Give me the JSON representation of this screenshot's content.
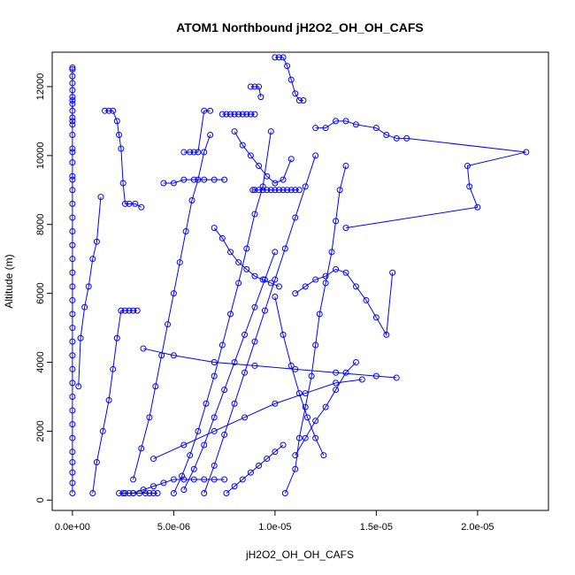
{
  "chart_data": {
    "type": "scatter",
    "title": "ATOM1 Northbound jH2O2_OH_OH_CAFS",
    "xlabel": "jH2O2_OH_OH_CAFS",
    "ylabel": "Altitude (m)",
    "xlim": [
      -1e-06,
      2.35e-05
    ],
    "ylim": [
      -300,
      13000
    ],
    "x_ticks": [
      0,
      5e-06,
      1e-05,
      1.5e-05,
      2e-05
    ],
    "x_tick_labels": [
      "0.0e+00",
      "5.0e-06",
      "1.0e-05",
      "1.5e-05",
      "2.0e-05"
    ],
    "y_ticks": [
      0,
      2000,
      4000,
      6000,
      8000,
      10000,
      12000
    ],
    "y_tick_labels": [
      "0",
      "2000",
      "4000",
      "6000",
      "8000",
      "10000",
      "12000"
    ],
    "grid": false,
    "legend": "none",
    "point_style": "open-circle",
    "series_style": "lines-and-points",
    "color": "#0000ff",
    "series": [
      {
        "x": [
          0,
          0,
          0,
          0,
          0,
          0,
          0,
          0,
          0,
          0,
          0,
          0,
          0,
          0,
          0,
          0,
          0,
          0,
          0,
          0,
          0,
          0,
          0,
          0,
          0,
          0,
          0,
          0,
          0,
          0,
          0,
          0,
          0,
          0,
          0,
          0,
          0,
          0,
          0,
          0,
          0,
          0
        ],
        "y": [
          200,
          500,
          800,
          1100,
          1400,
          1800,
          2200,
          2600,
          3000,
          3400,
          3800,
          4200,
          4600,
          5000,
          5400,
          5800,
          6200,
          6600,
          7000,
          7400,
          7800,
          8200,
          8600,
          9000,
          9400,
          9800,
          10200,
          10600,
          10900,
          11100,
          11300,
          11500,
          11700,
          11900,
          12100,
          12300,
          12500,
          12550,
          11600,
          11000,
          10100,
          9300
        ]
      },
      {
        "x": [
          3e-07,
          4e-07,
          6e-07,
          8e-07,
          1e-06,
          1.2e-06,
          1.4e-06
        ],
        "y": [
          3300,
          4700,
          5600,
          6200,
          7000,
          7500,
          8800
        ]
      },
      {
        "x": [
          1.6e-06,
          1.8e-06,
          2e-06,
          2.2e-06,
          2.3e-06,
          2.4e-06,
          2.5e-06,
          2.6e-06,
          2.8e-06,
          3.1e-06,
          3.4e-06
        ],
        "y": [
          11300,
          11300,
          11300,
          11000,
          10600,
          10200,
          9200,
          8600,
          8600,
          8600,
          8500
        ]
      },
      {
        "x": [
          1e-06,
          1.2e-06,
          1.5e-06,
          1.8e-06,
          2e-06,
          2.2e-06,
          2.4e-06,
          2.6e-06,
          2.8e-06,
          3e-06,
          3.2e-06
        ],
        "y": [
          200,
          1100,
          2000,
          2900,
          3800,
          4700,
          5500,
          5500,
          5500,
          5500,
          5500
        ]
      },
      {
        "x": [
          2.3e-06,
          2.5e-06,
          2.6e-06,
          2.8e-06,
          3e-06,
          3.3e-06,
          3.6e-06,
          3.8e-06,
          4e-06,
          4.2e-06
        ],
        "y": [
          200,
          200,
          200,
          200,
          200,
          200,
          200,
          200,
          200,
          200
        ]
      },
      {
        "x": [
          3e-06,
          3.4e-06,
          3.8e-06,
          4.1e-06,
          4.4e-06,
          4.7e-06,
          5e-06,
          5.3e-06,
          5.6e-06,
          5.9e-06,
          6.2e-06,
          6.5e-06,
          6.8e-06
        ],
        "y": [
          600,
          1500,
          2400,
          3300,
          4200,
          5100,
          6000,
          6900,
          7800,
          8700,
          9300,
          10100,
          10600
        ]
      },
      {
        "x": [
          5e-06,
          5.4e-06,
          5.8e-06,
          6.2e-06,
          6.6e-06,
          7e-06,
          7.4e-06,
          7.8e-06,
          8.2e-06,
          8.6e-06,
          9e-06,
          9.4e-06,
          9.8e-06
        ],
        "y": [
          200,
          700,
          1300,
          2000,
          2800,
          3600,
          4500,
          5400,
          6300,
          7300,
          8300,
          9100,
          10700
        ]
      },
      {
        "x": [
          7.4e-06,
          7.6e-06,
          7.8e-06,
          8e-06,
          8.2e-06,
          8.4e-06,
          8.6e-06,
          8.8e-06,
          9e-06
        ],
        "y": [
          11200,
          11200,
          11200,
          11200,
          11200,
          11200,
          11200,
          11200,
          11200
        ]
      },
      {
        "x": [
          8.9e-06,
          9e-06,
          9.2e-06,
          9.4e-06,
          9.6e-06,
          9.8e-06,
          1e-05,
          1.02e-05,
          1.04e-05,
          1.06e-05,
          1.08e-05,
          1.1e-05,
          1.12e-05
        ],
        "y": [
          9000,
          9000,
          9000,
          9000,
          9000,
          9000,
          9000,
          9000,
          9000,
          9000,
          9000,
          9000,
          9000
        ]
      },
      {
        "x": [
          1e-05,
          1.02e-05,
          1.04e-05,
          1.06e-05,
          1.08e-05,
          1.1e-05,
          1.12e-05,
          1.14e-05
        ],
        "y": [
          12850,
          12850,
          12850,
          12600,
          12200,
          11800,
          11600,
          11600
        ]
      },
      {
        "x": [
          1.2e-05,
          1.25e-05,
          1.3e-05,
          1.35e-05,
          1.4e-05,
          1.5e-05,
          1.55e-05,
          1.6e-05,
          1.65e-05,
          2.24e-05,
          1.95e-05,
          1.96e-05,
          2e-05,
          1.35e-05
        ],
        "y": [
          10800,
          10800,
          11000,
          11000,
          10900,
          10800,
          10600,
          10500,
          10500,
          10100,
          9700,
          9100,
          8500,
          7900
        ]
      },
      {
        "x": [
          1.1e-05,
          1.15e-05,
          1.2e-05,
          1.25e-05,
          1.3e-05,
          1.35e-05,
          1.4e-05,
          1.45e-05,
          1.5e-05,
          1.55e-05,
          1.58e-05
        ],
        "y": [
          6000,
          6200,
          6400,
          6500,
          6700,
          6600,
          6200,
          5800,
          5300,
          4800,
          6600
        ]
      },
      {
        "x": [
          3.5e-06,
          5e-06,
          7e-06,
          9e-06,
          1.1e-05,
          1.3e-05,
          1.5e-05,
          1.6e-05
        ],
        "y": [
          4400,
          4200,
          4000,
          3900,
          3800,
          3700,
          3600,
          3550
        ]
      },
      {
        "x": [
          4e-06,
          5.5e-06,
          7e-06,
          8.5e-06,
          1e-05,
          1.15e-05,
          1.3e-05,
          1.43e-05
        ],
        "y": [
          1200,
          1600,
          2000,
          2400,
          2800,
          3100,
          3400,
          3500
        ]
      },
      {
        "x": [
          1.1e-05,
          1.15e-05,
          1.2e-05,
          1.25e-05,
          1.3e-05,
          1.35e-05,
          1.4e-05
        ],
        "y": [
          1300,
          1800,
          2300,
          2700,
          3200,
          3700,
          4000
        ]
      },
      {
        "x": [
          5.5e-06,
          6e-06,
          6.5e-06,
          7e-06,
          7.5e-06,
          8e-06,
          8.5e-06,
          9e-06,
          9.5e-06,
          1e-05
        ],
        "y": [
          300,
          900,
          1600,
          2400,
          3200,
          4000,
          4800,
          5600,
          6400,
          7200
        ]
      },
      {
        "x": [
          6.5e-06,
          7e-06,
          7.5e-06,
          8e-06,
          8.5e-06,
          9e-06,
          9.5e-06,
          1e-05,
          1.05e-05,
          1.1e-05,
          1.15e-05,
          1.2e-05
        ],
        "y": [
          200,
          1000,
          1900,
          2800,
          3700,
          4600,
          5500,
          6400,
          7300,
          8200,
          9100,
          10000
        ]
      },
      {
        "x": [
          1.05e-05,
          1.1e-05,
          1.12e-05,
          1.15e-05,
          1.18e-05,
          1.2e-05,
          1.22e-05,
          1.25e-05,
          1.28e-05,
          1.3e-05,
          1.32e-05,
          1.35e-05
        ],
        "y": [
          200,
          900,
          1800,
          2700,
          3600,
          4500,
          5400,
          6300,
          7200,
          8100,
          9000,
          9700
        ]
      },
      {
        "x": [
          8e-06,
          8.4e-06,
          8.8e-06,
          9.2e-06,
          9.6e-06,
          1e-05,
          1.04e-05,
          1.08e-05
        ],
        "y": [
          10700,
          10300,
          10000,
          9700,
          9400,
          9200,
          9300,
          9900
        ]
      },
      {
        "x": [
          4.5e-06,
          5e-06,
          5.5e-06,
          6e-06,
          6.5e-06,
          7e-06,
          7.5e-06
        ],
        "y": [
          9200,
          9200,
          9300,
          9300,
          9300,
          9300,
          9300
        ]
      },
      {
        "x": [
          5.5e-06,
          5.8e-06,
          6e-06,
          6.2e-06,
          6.5e-06,
          6.8e-06
        ],
        "y": [
          10100,
          10100,
          10100,
          10100,
          11300,
          11300
        ]
      },
      {
        "x": [
          8.8e-06,
          9e-06,
          9.2e-06,
          9.3e-06
        ],
        "y": [
          12000,
          12000,
          12000,
          11700
        ]
      },
      {
        "x": [
          3e-06,
          3.5e-06,
          4e-06,
          4.5e-06,
          5e-06,
          5.5e-06,
          6e-06,
          6.5e-06,
          7e-06,
          7.5e-06
        ],
        "y": [
          200,
          300,
          400,
          500,
          600,
          600,
          600,
          600,
          600,
          600
        ]
      },
      {
        "x": [
          7.6e-06,
          8e-06,
          8.4e-06,
          8.8e-06,
          9.2e-06,
          9.6e-06,
          1e-05,
          1.04e-05
        ],
        "y": [
          200,
          400,
          600,
          800,
          1000,
          1200,
          1400,
          1600
        ]
      },
      {
        "x": [
          1.24e-05,
          1.2e-05,
          1.16e-05,
          1.12e-05,
          1.08e-05,
          1.04e-05,
          1e-05
        ],
        "y": [
          1300,
          1800,
          2400,
          3100,
          3900,
          4800,
          5900
        ]
      },
      {
        "x": [
          7e-06,
          7.4e-06,
          7.8e-06,
          8.2e-06,
          8.6e-06,
          9e-06,
          9.4e-06,
          9.8e-06,
          1.02e-05
        ],
        "y": [
          7900,
          7600,
          7200,
          6900,
          6700,
          6500,
          6400,
          6300,
          6200
        ]
      }
    ]
  }
}
